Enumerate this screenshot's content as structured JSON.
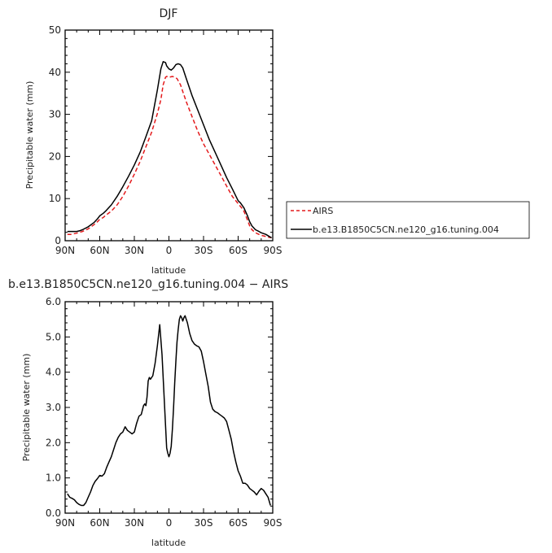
{
  "chart_data": [
    {
      "type": "line",
      "title": "DJF",
      "xlabel": "latitude",
      "ylabel": "Precipitable water (mm)",
      "xlim": [
        90,
        -90
      ],
      "ylim": [
        0,
        50
      ],
      "x_ticks": [
        90,
        60,
        30,
        0,
        -30,
        -60,
        -90
      ],
      "x_tick_labels": [
        "90N",
        "60N",
        "30N",
        "0",
        "30S",
        "60S",
        "90S"
      ],
      "y_ticks": [
        0,
        10,
        20,
        30,
        40,
        50
      ],
      "y_tick_labels": [
        "0",
        "10",
        "20",
        "30",
        "40",
        "50"
      ],
      "legend_position": "right",
      "series": [
        {
          "name": "AIRS",
          "color": "#e41a1c",
          "dash": "dashed",
          "x": [
            88,
            85,
            80,
            75,
            70,
            65,
            62,
            60,
            57,
            55,
            50,
            45,
            40,
            35,
            30,
            25,
            20,
            15,
            10,
            7,
            5,
            3,
            2,
            0,
            -3,
            -5,
            -7,
            -10,
            -15,
            -20,
            -25,
            -30,
            -35,
            -40,
            -45,
            -50,
            -55,
            -60,
            -63,
            -65,
            -68,
            -70,
            -72,
            -75,
            -78,
            -80,
            -84,
            -87,
            -89
          ],
          "y": [
            1.5,
            1.5,
            1.8,
            2.2,
            2.8,
            3.8,
            4.5,
            5.1,
            5.5,
            6.0,
            7.0,
            8.5,
            10.5,
            13.0,
            15.8,
            18.8,
            22.3,
            25.8,
            30.2,
            33.5,
            37.0,
            38.8,
            39.0,
            38.8,
            39.0,
            38.8,
            38.5,
            37.0,
            33.0,
            29.5,
            26.0,
            23.0,
            20.5,
            18.0,
            15.5,
            13.0,
            10.5,
            8.8,
            7.8,
            7.0,
            5.0,
            3.5,
            2.6,
            1.9,
            1.5,
            1.3,
            1.0,
            0.8,
            0.7
          ]
        },
        {
          "name": "b.e13.B1850C5CN.ne120_g16.tuning.004",
          "color": "#000000",
          "dash": "solid",
          "x": [
            88,
            85,
            80,
            77,
            75,
            70,
            65,
            62,
            60,
            57,
            55,
            50,
            45,
            40,
            35,
            30,
            25,
            20,
            15,
            10,
            7,
            5,
            3,
            2,
            0,
            -2,
            -4,
            -6,
            -8,
            -10,
            -12,
            -15,
            -20,
            -25,
            -30,
            -35,
            -40,
            -45,
            -50,
            -55,
            -60,
            -62,
            -65,
            -68,
            -70,
            -72,
            -75,
            -78,
            -80,
            -84,
            -87,
            -89
          ],
          "y": [
            2.2,
            2.2,
            2.2,
            2.4,
            2.6,
            3.3,
            4.3,
            5.2,
            5.9,
            6.5,
            7.0,
            8.5,
            10.5,
            12.8,
            15.3,
            18.0,
            21.0,
            24.7,
            28.5,
            35.8,
            40.8,
            42.5,
            42.3,
            41.5,
            40.8,
            40.5,
            41.0,
            41.8,
            42.0,
            41.8,
            41.0,
            38.5,
            34.5,
            31.0,
            27.5,
            24.0,
            21.0,
            18.0,
            15.0,
            12.3,
            9.5,
            9.0,
            7.8,
            6.0,
            4.5,
            3.5,
            2.6,
            2.2,
            1.9,
            1.5,
            1.0,
            0.7
          ]
        }
      ]
    },
    {
      "type": "line",
      "title": "b.e13.B1850C5CN.ne120_g16.tuning.004 − AIRS",
      "xlabel": "latitude",
      "ylabel": "Precipitable water (mm)",
      "xlim": [
        90,
        -90
      ],
      "ylim": [
        0,
        6
      ],
      "x_ticks": [
        90,
        60,
        30,
        0,
        -30,
        -60,
        -90
      ],
      "x_tick_labels": [
        "90N",
        "60N",
        "30N",
        "0",
        "30S",
        "60S",
        "90S"
      ],
      "y_ticks": [
        0,
        1,
        2,
        3,
        4,
        5,
        6
      ],
      "y_tick_labels": [
        "0.0",
        "1.0",
        "2.0",
        "3.0",
        "4.0",
        "5.0",
        "6.0"
      ],
      "series": [
        {
          "color": "#000000",
          "x": [
            88,
            86,
            84,
            82,
            80,
            78,
            76,
            74,
            72,
            70,
            68,
            66,
            64,
            62,
            60,
            58,
            56,
            54,
            52,
            50,
            48,
            46,
            44,
            42,
            40,
            38,
            36,
            34,
            32,
            30,
            28,
            26,
            24,
            22,
            21,
            20,
            19,
            18,
            17,
            16,
            14,
            12,
            10,
            8,
            6,
            4,
            3,
            2,
            1,
            0,
            -1,
            -2,
            -3,
            -4,
            -5,
            -6,
            -7,
            -8,
            -9,
            -10,
            -11,
            -12,
            -13,
            -14,
            -15,
            -16,
            -18,
            -20,
            -22,
            -24,
            -26,
            -28,
            -30,
            -32,
            -34,
            -36,
            -38,
            -40,
            -42,
            -44,
            -46,
            -48,
            -50,
            -52,
            -54,
            -56,
            -58,
            -60,
            -62,
            -64,
            -66,
            -68,
            -70,
            -72,
            -74,
            -76,
            -78,
            -80,
            -82,
            -84,
            -86,
            -88
          ],
          "y": [
            0.55,
            0.45,
            0.42,
            0.38,
            0.3,
            0.25,
            0.22,
            0.22,
            0.3,
            0.45,
            0.6,
            0.78,
            0.9,
            0.98,
            1.07,
            1.05,
            1.12,
            1.3,
            1.45,
            1.6,
            1.8,
            2.0,
            2.15,
            2.25,
            2.3,
            2.45,
            2.35,
            2.3,
            2.25,
            2.3,
            2.55,
            2.75,
            2.8,
            3.05,
            3.1,
            3.05,
            3.3,
            3.75,
            3.85,
            3.8,
            3.9,
            4.25,
            4.75,
            5.35,
            4.5,
            3.2,
            2.5,
            1.85,
            1.7,
            1.6,
            1.7,
            1.9,
            2.4,
            3.0,
            3.7,
            4.3,
            4.85,
            5.2,
            5.5,
            5.6,
            5.55,
            5.45,
            5.55,
            5.6,
            5.5,
            5.4,
            5.1,
            4.9,
            4.8,
            4.75,
            4.72,
            4.6,
            4.3,
            3.95,
            3.6,
            3.15,
            2.95,
            2.88,
            2.85,
            2.8,
            2.75,
            2.7,
            2.6,
            2.35,
            2.1,
            1.75,
            1.45,
            1.2,
            1.05,
            0.85,
            0.85,
            0.8,
            0.7,
            0.65,
            0.6,
            0.52,
            0.62,
            0.7,
            0.65,
            0.55,
            0.45,
            0.22
          ]
        }
      ]
    }
  ]
}
